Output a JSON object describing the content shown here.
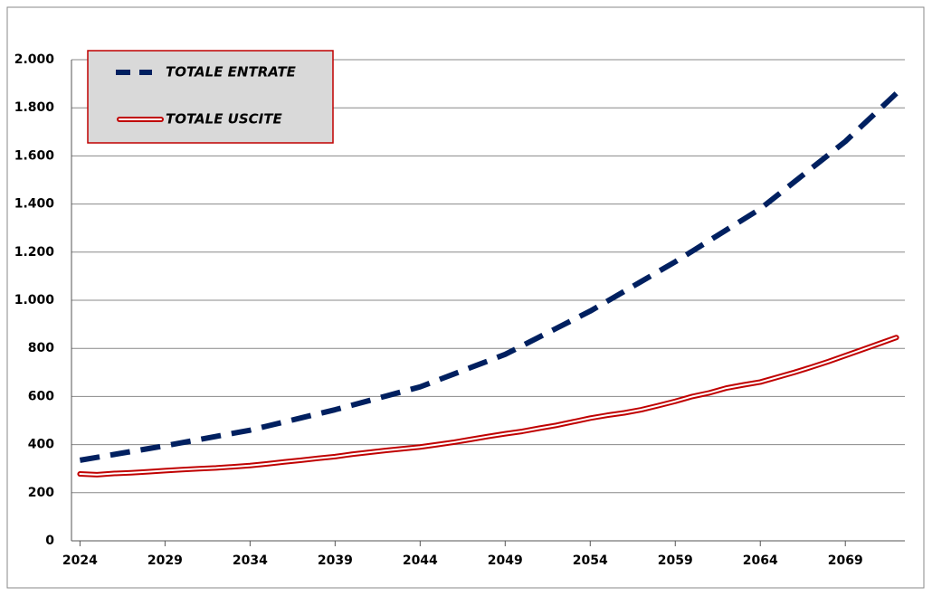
{
  "chart_data": {
    "type": "line",
    "x": [
      2024,
      2025,
      2026,
      2027,
      2028,
      2029,
      2030,
      2031,
      2032,
      2033,
      2034,
      2035,
      2036,
      2037,
      2038,
      2039,
      2040,
      2041,
      2042,
      2043,
      2044,
      2045,
      2046,
      2047,
      2048,
      2049,
      2050,
      2051,
      2052,
      2053,
      2054,
      2055,
      2056,
      2057,
      2058,
      2059,
      2060,
      2061,
      2062,
      2063,
      2064,
      2065,
      2066,
      2067,
      2068,
      2069,
      2070,
      2071,
      2072
    ],
    "xlim": [
      2023.5,
      2072.5
    ],
    "xticks": [
      2024,
      2029,
      2034,
      2039,
      2044,
      2049,
      2054,
      2059,
      2064,
      2069
    ],
    "ylim": [
      0,
      2000
    ],
    "yticks": [
      0,
      200,
      400,
      600,
      800,
      {
        "value": 1000,
        "label": "1.000"
      },
      {
        "value": 1200,
        "label": "1.200"
      },
      {
        "value": 1400,
        "label": "1.400"
      },
      {
        "value": 1600,
        "label": "1.600"
      },
      {
        "value": 1800,
        "label": "1.800"
      },
      {
        "value": 2000,
        "label": "2.000"
      }
    ],
    "grid": true,
    "legend": "upper left",
    "series": [
      {
        "name": "TOTALE ENTRATE",
        "color": "#002060",
        "style": "dashed",
        "values": [
          335,
          347,
          359,
          371,
          383,
          395,
          408,
          421,
          434,
          447,
          460,
          477,
          494,
          511,
          528,
          545,
          564,
          583,
          602,
          621,
          640,
          667,
          694,
          721,
          748,
          775,
          811,
          847,
          883,
          919,
          955,
          996,
          1037,
          1078,
          1119,
          1160,
          1204,
          1248,
          1292,
          1336,
          1380,
          1436,
          1492,
          1548,
          1604,
          1660,
          1727,
          1793,
          1860
        ]
      },
      {
        "name": "TOTALE USCITE",
        "color": "#c00000",
        "style": "double",
        "values": [
          278,
          275,
          280,
          283,
          287,
          292,
          296,
          300,
          303,
          308,
          313,
          320,
          328,
          335,
          343,
          350,
          360,
          368,
          376,
          383,
          390,
          400,
          410,
          422,
          434,
          445,
          455,
          468,
          480,
          495,
          510,
          522,
          532,
          545,
          562,
          580,
          600,
          615,
          635,
          648,
          660,
          680,
          700,
          722,
          745,
          770,
          795,
          820,
          845
        ]
      }
    ]
  }
}
